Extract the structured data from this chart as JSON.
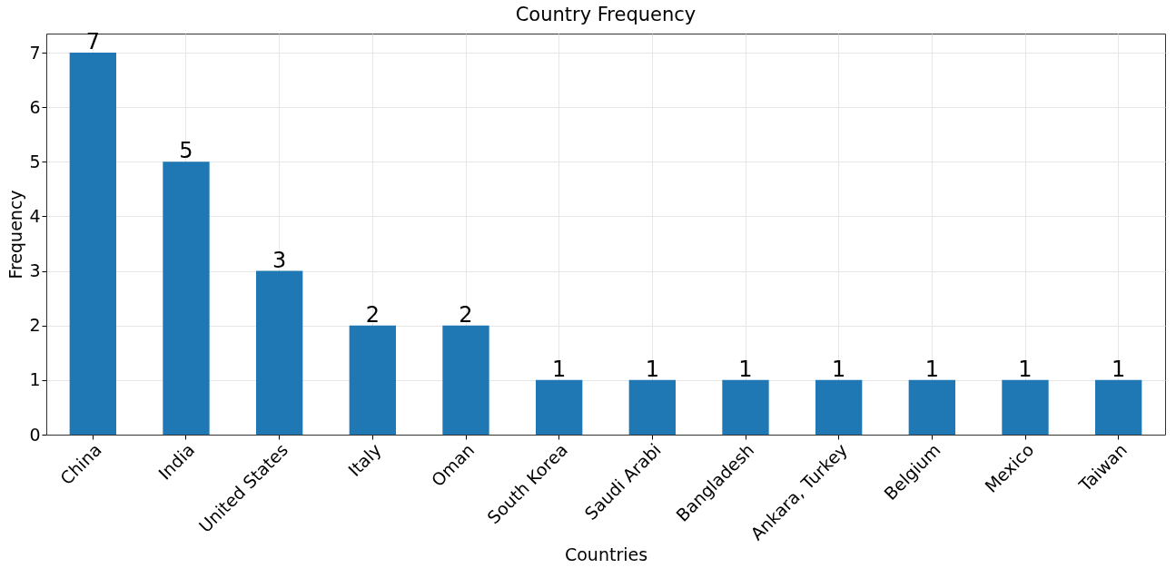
{
  "chart_data": {
    "type": "bar",
    "title": "Country Frequency",
    "xlabel": "Countries",
    "ylabel": "Frequency",
    "categories": [
      "China",
      "India",
      "United States",
      "Italy",
      "Oman",
      "South Korea",
      "Saudi Arabi",
      "Bangladesh",
      "Ankara, Turkey",
      "Belgium",
      "Mexico",
      "Taiwan"
    ],
    "values": [
      7,
      5,
      3,
      2,
      2,
      1,
      1,
      1,
      1,
      1,
      1,
      1
    ],
    "color": "#1f77b4",
    "ylim": [
      0,
      7.35
    ],
    "yticks": [
      0,
      1,
      2,
      3,
      4,
      5,
      6,
      7
    ],
    "grid": true,
    "data_labels": true
  }
}
